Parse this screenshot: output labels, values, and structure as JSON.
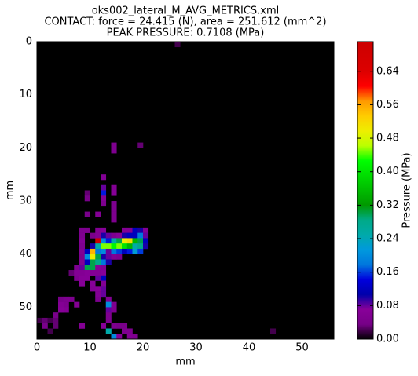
{
  "chart_data": {
    "type": "heatmap",
    "title": [
      "oks002_lateral_M_AVG_METRICS.xml",
      "CONTACT: force = 24.415 (N), area = 251.612 (mm^2)",
      "PEAK PRESSURE: 0.7108 (MPa)"
    ],
    "x_label": "mm",
    "y_label": "mm",
    "colorbar_label": "Pressure (MPa)",
    "colormap": "nipy_spectral",
    "background": "#000000",
    "xlim": [
      0,
      56
    ],
    "ylim": [
      56,
      0
    ],
    "xticks": [
      0,
      10,
      20,
      30,
      40,
      50
    ],
    "yticks": [
      0,
      10,
      20,
      30,
      40,
      50
    ],
    "clim": [
      0,
      0.7108
    ],
    "cticks": [
      {
        "value": 0,
        "label": "0.00"
      },
      0.08,
      0.16,
      0.24,
      0.32,
      {
        "value": 0.4,
        "label": "0.40"
      },
      0.48,
      0.56,
      0.64
    ],
    "x": [
      26,
      14,
      14,
      19,
      12,
      12,
      12,
      12,
      12,
      14,
      14,
      14,
      14,
      14,
      14,
      9,
      9,
      9,
      11,
      8,
      9,
      11,
      12,
      16,
      17,
      18,
      19,
      20,
      8,
      10,
      11,
      12,
      13,
      14,
      15,
      16,
      17,
      18,
      19,
      20,
      8,
      11,
      12,
      13,
      14,
      15,
      16,
      17,
      18,
      19,
      20,
      8,
      10,
      11,
      12,
      13,
      14,
      15,
      16,
      17,
      18,
      19,
      20,
      8,
      9,
      10,
      11,
      12,
      13,
      14,
      15,
      16,
      17,
      18,
      19,
      8,
      9,
      10,
      11,
      12,
      13,
      14,
      15,
      8,
      9,
      10,
      11,
      12,
      13,
      7,
      8,
      9,
      10,
      11,
      12,
      6,
      7,
      8,
      9,
      10,
      11,
      12,
      7,
      8,
      9,
      11,
      12,
      8,
      10,
      12,
      10,
      11,
      12,
      11,
      12,
      4,
      5,
      6,
      11,
      13,
      4,
      5,
      7,
      13,
      14,
      4,
      5,
      13,
      14,
      3,
      13,
      0,
      1,
      2,
      3,
      13,
      1,
      3,
      8,
      12,
      14,
      15,
      16,
      2,
      13,
      16,
      17,
      44,
      14,
      15,
      17,
      18
    ],
    "y": [
      0,
      19,
      20,
      19,
      25,
      27,
      28,
      29,
      30,
      27,
      28,
      30,
      31,
      32,
      33,
      28,
      29,
      32,
      32,
      35,
      35,
      35,
      35,
      35,
      35,
      35,
      35,
      35,
      36,
      36,
      36,
      36,
      36,
      36,
      36,
      36,
      36,
      36,
      36,
      36,
      37,
      37,
      37,
      37,
      37,
      37,
      37,
      37,
      37,
      37,
      37,
      38,
      38,
      38,
      38,
      38,
      38,
      38,
      38,
      38,
      38,
      38,
      38,
      39,
      39,
      39,
      39,
      39,
      39,
      39,
      39,
      39,
      39,
      39,
      39,
      40,
      40,
      40,
      40,
      40,
      40,
      40,
      40,
      41,
      41,
      41,
      41,
      41,
      41,
      42,
      42,
      42,
      42,
      42,
      42,
      43,
      43,
      43,
      43,
      43,
      43,
      43,
      44,
      44,
      44,
      44,
      44,
      45,
      45,
      45,
      46,
      46,
      46,
      47,
      47,
      48,
      48,
      48,
      48,
      48,
      49,
      49,
      49,
      49,
      49,
      50,
      50,
      50,
      50,
      51,
      51,
      52,
      52,
      52,
      52,
      52,
      53,
      53,
      53,
      53,
      53,
      53,
      53,
      54,
      54,
      54,
      54,
      54,
      55,
      55,
      55,
      55
    ],
    "values": [
      0.02,
      0.05,
      0.05,
      0.03,
      0.06,
      0.08,
      0.15,
      0.06,
      0.05,
      0.06,
      0.07,
      0.05,
      0.05,
      0.05,
      0.05,
      0.03,
      0.04,
      0.04,
      0.06,
      0.05,
      0.05,
      0.06,
      0.07,
      0.06,
      0.06,
      0.12,
      0.1,
      0.06,
      0.05,
      0.04,
      0.06,
      0.1,
      0.08,
      0.05,
      0.07,
      0.1,
      0.12,
      0.12,
      0.18,
      0.08,
      0.06,
      0.71,
      0.2,
      0.15,
      0.25,
      0.3,
      0.5,
      0.52,
      0.35,
      0.3,
      0.12,
      0.05,
      0.1,
      0.25,
      0.45,
      0.45,
      0.42,
      0.45,
      0.4,
      0.35,
      0.25,
      0.28,
      0.1,
      0.06,
      0.12,
      0.55,
      0.18,
      0.2,
      0.08,
      0.18,
      0.16,
      0.12,
      0.15,
      0.22,
      0.16,
      0.05,
      0.2,
      0.5,
      0.3,
      0.1,
      0.08,
      0.06,
      0.05,
      0.06,
      0.12,
      0.3,
      0.28,
      0.18,
      0.1,
      0.05,
      0.08,
      0.3,
      0.3,
      0.07,
      0.06,
      0.03,
      0.06,
      0.06,
      0.07,
      0.06,
      0.06,
      0.07,
      0.05,
      0.07,
      0.07,
      0.08,
      0.12,
      0.07,
      0.07,
      0.06,
      0.06,
      0.07,
      0.08,
      0.06,
      0.08,
      0.04,
      0.05,
      0.05,
      0.05,
      0.06,
      0.06,
      0.05,
      0.06,
      0.2,
      0.05,
      0.07,
      0.06,
      0.08,
      0.05,
      0.04,
      0.05,
      0.02,
      0.03,
      0.02,
      0.03,
      0.05,
      0.04,
      0.03,
      0.06,
      0.07,
      0.05,
      0.04,
      0.04,
      0.02,
      0.25,
      0.05,
      0.05,
      0.02,
      0.2,
      0.07,
      0.06,
      0.05
    ]
  }
}
